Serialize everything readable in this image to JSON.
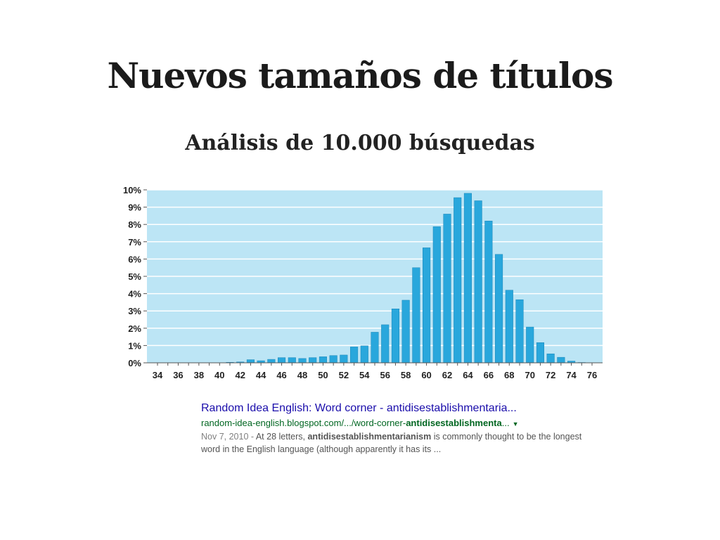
{
  "slide": {
    "title": "Nuevos tamaños de títulos",
    "subtitle": "Análisis de 10.000 búsquedas"
  },
  "chart_data": {
    "type": "bar",
    "xlabel": "",
    "ylabel": "",
    "ylim": [
      0,
      10
    ],
    "y_ticks": [
      "0%",
      "1%",
      "2%",
      "3%",
      "4%",
      "5%",
      "6%",
      "7%",
      "8%",
      "9%",
      "10%"
    ],
    "x_tick_labels": [
      "34",
      "36",
      "38",
      "40",
      "42",
      "44",
      "46",
      "48",
      "50",
      "52",
      "54",
      "56",
      "58",
      "60",
      "62",
      "64",
      "66",
      "68",
      "70",
      "72",
      "74",
      "76"
    ],
    "grid": true,
    "colors": {
      "bar": "#29a7dc",
      "bar_edge": "#1b86b8",
      "plot_background": "#bce5f5",
      "gridline": "#ffffff"
    },
    "categories": [
      34,
      35,
      36,
      37,
      38,
      39,
      40,
      41,
      42,
      43,
      44,
      45,
      46,
      47,
      48,
      49,
      50,
      51,
      52,
      53,
      54,
      55,
      56,
      57,
      58,
      59,
      60,
      61,
      62,
      63,
      64,
      65,
      66,
      67,
      68,
      69,
      70,
      71,
      72,
      73,
      74,
      75,
      76
    ],
    "values": [
      0,
      0,
      0,
      0,
      0,
      0,
      0,
      0.03,
      0.05,
      0.18,
      0.12,
      0.2,
      0.3,
      0.3,
      0.25,
      0.3,
      0.35,
      0.42,
      0.45,
      0.92,
      0.98,
      1.77,
      2.2,
      3.12,
      3.62,
      5.5,
      6.65,
      7.87,
      8.6,
      9.55,
      9.8,
      9.37,
      8.2,
      6.27,
      4.2,
      3.65,
      2.07,
      1.17,
      0.52,
      0.32,
      0.1,
      0.02,
      0
    ]
  },
  "search_result": {
    "title": "Random Idea English: Word corner - antidisestablishmentaria...",
    "url_prefix": "random-idea-english.blogspot.com/.../word-corner-",
    "url_bold": "antidisestablishmenta",
    "url_suffix": "...",
    "dropdown_icon": "triangle-down-icon",
    "date": "Nov 7, 2010 - ",
    "snippet_before": "At 28 letters, ",
    "snippet_bold": "antidisestablishmentarianism",
    "snippet_after": " is commonly thought to be the longest word in the English language (although apparently it has its ..."
  }
}
